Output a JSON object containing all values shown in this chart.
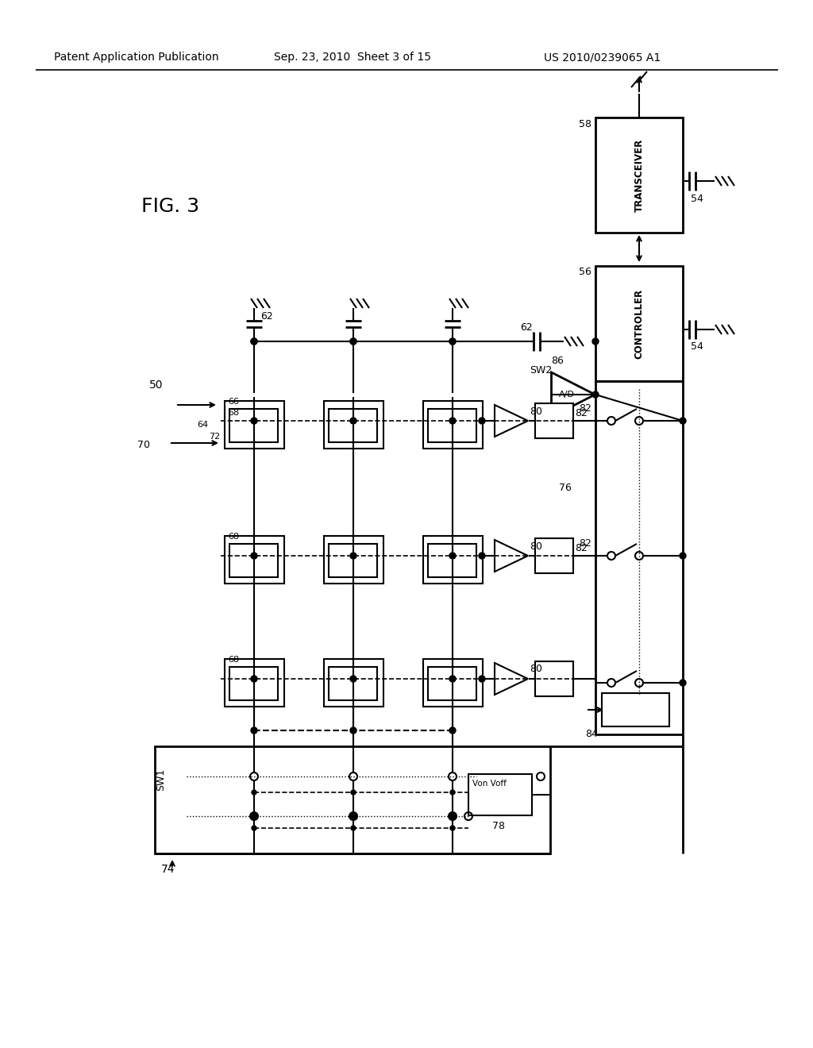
{
  "bg_color": "#ffffff",
  "lc": "#000000",
  "header_left": "Patent Application Publication",
  "header_mid": "Sep. 23, 2010  Sheet 3 of 15",
  "header_right": "US 2010/0239065 A1",
  "fig_label": "FIG. 3"
}
